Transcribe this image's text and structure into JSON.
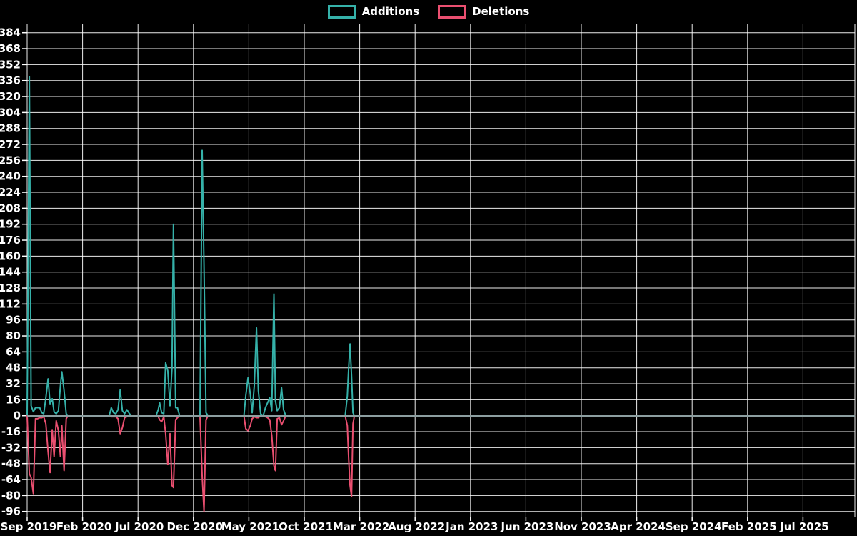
{
  "legend": {
    "items": [
      {
        "label": "Additions",
        "color": "#35b1a9"
      },
      {
        "label": "Deletions",
        "color": "#ea4f70"
      }
    ]
  },
  "chart_data": {
    "type": "line",
    "title": "",
    "legend": [
      "Additions",
      "Deletions"
    ],
    "legend_position": "top-center",
    "grid": true,
    "colors": {
      "background": "#000000",
      "grid_line": "#ffffff",
      "zero_line": "#8c9ea0",
      "tick_text": "#ffffff",
      "additions_line": "#35b1a9",
      "deletions_line": "#ea4f70"
    },
    "y_axis": {
      "min": -96,
      "max": 384,
      "tick_step": 16,
      "tick_labels": [
        "384",
        "368",
        "352",
        "336",
        "320",
        "304",
        "288",
        "272",
        "256",
        "240",
        "224",
        "208",
        "192",
        "176",
        "160",
        "144",
        "128",
        "112",
        "96",
        "80",
        "64",
        "48",
        "32",
        "16",
        "0",
        "-16",
        "-32",
        "-48",
        "-64",
        "-80",
        "-96"
      ]
    },
    "x_axis": {
      "tick_labels": [
        "Sep 2019",
        "Feb 2020",
        "Jul 2020",
        "Dec 2020",
        "May 2021",
        "Oct 2021",
        "Mar 2022",
        "Aug 2022",
        "Jan 2023",
        "Jun 2023",
        "Nov 2023",
        "Apr 2024",
        "Sep 2024",
        "Feb 2025",
        "Jul 2025"
      ],
      "months_per_tick": 5
    },
    "x_dates": [
      "2019-09-01",
      "2019-09-07",
      "2019-09-12",
      "2019-09-18",
      "2019-09-24",
      "2019-09-29",
      "2019-10-05",
      "2019-10-11",
      "2019-10-16",
      "2019-10-22",
      "2019-10-28",
      "2019-11-03",
      "2019-11-09",
      "2019-11-14",
      "2019-11-20",
      "2019-11-26",
      "2019-12-01",
      "2019-12-05",
      "2019-12-11",
      "2019-12-17",
      "2019-12-22",
      "2020-04-13",
      "2020-04-19",
      "2020-04-25",
      "2020-05-01",
      "2020-05-07",
      "2020-05-13",
      "2020-05-19",
      "2020-05-25",
      "2020-06-01",
      "2020-06-08",
      "2020-06-14",
      "2020-08-20",
      "2020-08-26",
      "2020-08-30",
      "2020-09-05",
      "2020-09-11",
      "2020-09-16",
      "2020-09-22",
      "2020-09-28",
      "2020-10-03",
      "2020-10-07",
      "2020-10-13",
      "2020-10-18",
      "2020-10-24",
      "2020-12-19",
      "2020-12-25",
      "2020-12-30",
      "2021-01-05",
      "2021-01-11",
      "2021-04-18",
      "2021-04-23",
      "2021-04-29",
      "2021-05-05",
      "2021-05-10",
      "2021-05-16",
      "2021-05-22",
      "2021-05-27",
      "2021-06-03",
      "2021-06-10",
      "2021-06-16",
      "2021-06-22",
      "2021-06-28",
      "2021-07-03",
      "2021-07-09",
      "2021-07-13",
      "2021-07-18",
      "2021-07-24",
      "2021-07-30",
      "2021-08-05",
      "2021-08-11",
      "2022-01-22",
      "2022-01-28",
      "2022-02-01",
      "2022-02-05",
      "2022-02-09",
      "2022-02-13",
      "2022-02-17",
      "2025-11-20"
    ],
    "series": [
      {
        "name": "Additions",
        "color": "#35b1a9",
        "values": [
          0,
          340,
          10,
          4,
          8,
          8,
          8,
          3,
          2,
          18,
          37,
          12,
          17,
          4,
          2,
          5,
          30,
          44,
          25,
          2,
          0,
          0,
          8,
          3,
          2,
          6,
          26,
          5,
          2,
          6,
          2,
          0,
          0,
          6,
          13,
          3,
          2,
          53,
          45,
          10,
          48,
          192,
          8,
          8,
          0,
          0,
          266,
          150,
          3,
          0,
          0,
          20,
          38,
          22,
          3,
          30,
          88,
          25,
          2,
          0,
          8,
          13,
          18,
          5,
          122,
          15,
          5,
          8,
          28,
          6,
          0,
          0,
          20,
          47,
          72,
          40,
          3,
          0,
          0
        ]
      },
      {
        "name": "Deletions",
        "color": "#ea4f70",
        "values": [
          0,
          -58,
          -62,
          -78,
          -3,
          -3,
          -2,
          -2,
          -1,
          -8,
          -36,
          -57,
          -14,
          -41,
          -5,
          -15,
          -41,
          -10,
          -55,
          -3,
          0,
          0,
          -1,
          -1,
          -1,
          -3,
          -18,
          -12,
          -2,
          -1,
          0,
          0,
          0,
          -1,
          -4,
          -6,
          -1,
          -18,
          -49,
          -18,
          -70,
          -72,
          -4,
          -2,
          0,
          0,
          -60,
          -96,
          -4,
          0,
          0,
          -13,
          -15,
          -10,
          -3,
          -1,
          -2,
          -2,
          0,
          0,
          -1,
          -2,
          -4,
          -20,
          -50,
          -55,
          -3,
          -2,
          -9,
          -5,
          0,
          0,
          -10,
          -42,
          -70,
          -81,
          -8,
          0,
          0
        ]
      }
    ]
  }
}
